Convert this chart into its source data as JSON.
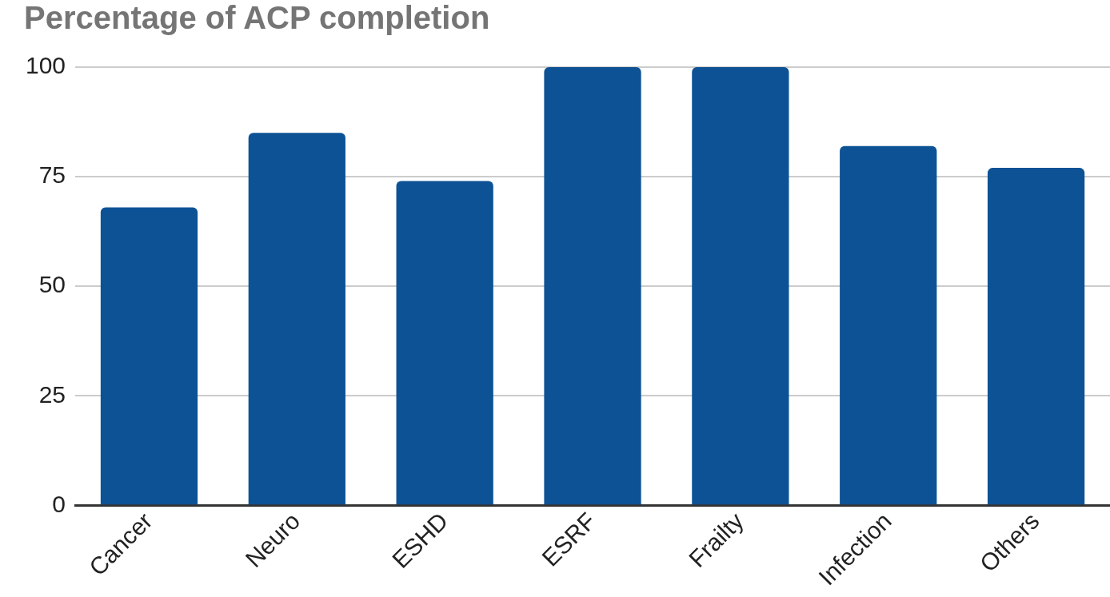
{
  "chart_data": {
    "type": "bar",
    "title": "Percentage of ACP completion",
    "categories": [
      "Cancer",
      "Neuro",
      "ESHD",
      "ESRF",
      "Frailty",
      "Infection",
      "Others"
    ],
    "values": [
      68,
      85,
      74,
      100,
      100,
      82,
      77
    ],
    "color": "#0d5295",
    "ylim": [
      0,
      100
    ],
    "yticks": [
      0,
      25,
      50,
      75,
      100
    ],
    "grid": "y",
    "legend": false
  }
}
